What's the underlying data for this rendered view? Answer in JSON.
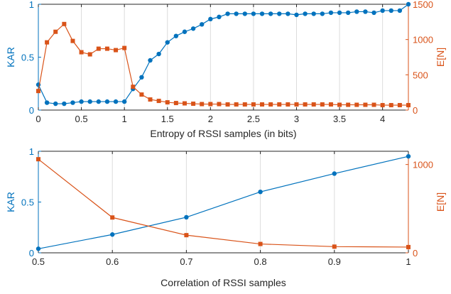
{
  "colors": {
    "kar": "#0072BD",
    "en": "#D95319",
    "axis": "#262626"
  },
  "chart_data": [
    {
      "type": "line",
      "xlabel": "Entropy of RSSI samples (in bits)",
      "ylabel_left": "KAR",
      "ylabel_right": "E[N]",
      "xlim": [
        0,
        4.3
      ],
      "ylim_left": [
        0,
        1
      ],
      "ylim_right": [
        0,
        1500
      ],
      "xticks": [
        0,
        0.5,
        1,
        1.5,
        2,
        2.5,
        3,
        3.5,
        4
      ],
      "xtick_labels": [
        "0",
        "0.5",
        "1",
        "1.5",
        "2",
        "2.5",
        "3",
        "3.5",
        "4"
      ],
      "yticks_left": [
        0,
        0.5,
        1
      ],
      "ytick_labels_left": [
        "0",
        "0.5",
        "1"
      ],
      "yticks_right": [
        0,
        500,
        1000,
        1500
      ],
      "ytick_labels_right": [
        "0",
        "500",
        "1000",
        "1500"
      ],
      "grid": "vertical",
      "series": [
        {
          "axis": "left",
          "marker": "circle",
          "x": [
            0,
            0.1,
            0.2,
            0.3,
            0.4,
            0.5,
            0.6,
            0.7,
            0.8,
            0.9,
            1.0,
            1.1,
            1.2,
            1.3,
            1.4,
            1.5,
            1.6,
            1.7,
            1.8,
            1.9,
            2.0,
            2.1,
            2.2,
            2.3,
            2.4,
            2.5,
            2.6,
            2.7,
            2.8,
            2.9,
            3.0,
            3.1,
            3.2,
            3.3,
            3.4,
            3.5,
            3.6,
            3.7,
            3.8,
            3.9,
            4.0,
            4.1,
            4.2,
            4.3
          ],
          "y": [
            0.24,
            0.07,
            0.06,
            0.06,
            0.07,
            0.08,
            0.08,
            0.08,
            0.08,
            0.08,
            0.08,
            0.2,
            0.31,
            0.47,
            0.53,
            0.64,
            0.7,
            0.74,
            0.77,
            0.81,
            0.86,
            0.88,
            0.91,
            0.91,
            0.91,
            0.91,
            0.91,
            0.91,
            0.91,
            0.91,
            0.9,
            0.91,
            0.91,
            0.91,
            0.92,
            0.92,
            0.92,
            0.93,
            0.93,
            0.92,
            0.94,
            0.94,
            0.94,
            1.0
          ]
        },
        {
          "axis": "right",
          "marker": "square",
          "x": [
            0,
            0.1,
            0.2,
            0.3,
            0.4,
            0.5,
            0.6,
            0.7,
            0.8,
            0.9,
            1.0,
            1.1,
            1.2,
            1.3,
            1.4,
            1.5,
            1.6,
            1.7,
            1.8,
            1.9,
            2.0,
            2.1,
            2.2,
            2.3,
            2.4,
            2.5,
            2.6,
            2.7,
            2.8,
            2.9,
            3.0,
            3.1,
            3.2,
            3.3,
            3.4,
            3.5,
            3.6,
            3.7,
            3.8,
            3.9,
            4.0,
            4.1,
            4.2,
            4.3
          ],
          "y": [
            270,
            960,
            1110,
            1220,
            980,
            820,
            790,
            870,
            870,
            850,
            880,
            330,
            220,
            150,
            130,
            110,
            100,
            95,
            90,
            85,
            85,
            85,
            80,
            80,
            80,
            80,
            80,
            80,
            80,
            80,
            80,
            80,
            80,
            80,
            80,
            75,
            75,
            75,
            75,
            75,
            70,
            70,
            70,
            70
          ]
        }
      ]
    },
    {
      "type": "line",
      "xlabel": "Correlation of RSSI samples",
      "ylabel_left": "KAR",
      "ylabel_right": "E[N]",
      "xlim": [
        0.5,
        1
      ],
      "ylim_left": [
        0,
        1
      ],
      "ylim_right": [
        0,
        1150
      ],
      "xticks": [
        0.5,
        0.6,
        0.7,
        0.8,
        0.9,
        1
      ],
      "xtick_labels": [
        "0.5",
        "0.6",
        "0.7",
        "0.8",
        "0.9",
        "1"
      ],
      "yticks_left": [
        0,
        0.5,
        1
      ],
      "ytick_labels_left": [
        "0",
        "0.5",
        "1"
      ],
      "yticks_right": [
        0,
        1000
      ],
      "ytick_labels_right": [
        "0",
        "1000"
      ],
      "grid": "vertical",
      "series": [
        {
          "axis": "left",
          "marker": "circle",
          "x": [
            0.5,
            0.6,
            0.7,
            0.8,
            0.9,
            1.0
          ],
          "y": [
            0.04,
            0.18,
            0.35,
            0.6,
            0.78,
            0.95
          ]
        },
        {
          "axis": "right",
          "marker": "square",
          "x": [
            0.5,
            0.6,
            0.7,
            0.8,
            0.9,
            1.0
          ],
          "y": [
            1060,
            400,
            200,
            100,
            70,
            65
          ]
        }
      ]
    }
  ]
}
